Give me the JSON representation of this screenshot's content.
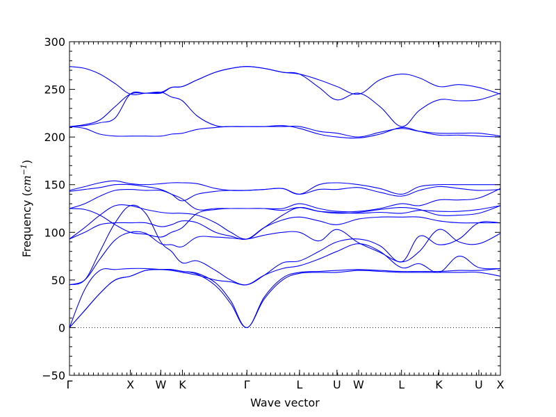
{
  "chart_data": {
    "type": "line",
    "title": "",
    "xlabel": "Wave vector",
    "ylabel": "Frequency",
    "ylabel_unit": "cm",
    "ylabel_exponent": "−1",
    "ylim": [
      -50,
      300
    ],
    "yticks": [
      -50,
      0,
      50,
      100,
      150,
      200,
      250,
      300
    ],
    "xlim": [
      0,
      14.16
    ],
    "grid": false,
    "legend": "none",
    "line_color": "#0000ff",
    "zero_line": {
      "y": 0,
      "style": "dotted",
      "color": "#000000"
    },
    "k_points": [
      {
        "label": "Γ",
        "x": 0
      },
      {
        "label": "X",
        "x": 2.0
      },
      {
        "label": "W",
        "x": 3.0
      },
      {
        "label": "K",
        "x": 3.71
      },
      {
        "label": "Γ",
        "x": 5.83
      },
      {
        "label": "L",
        "x": 7.56
      },
      {
        "label": "U",
        "x": 8.79
      },
      {
        "label": "W",
        "x": 9.5
      },
      {
        "label": "L",
        "x": 10.91
      },
      {
        "label": "K",
        "x": 12.14
      },
      {
        "label": "U",
        "x": 13.45
      },
      {
        "label": "X",
        "x": 14.16
      }
    ],
    "series": [
      {
        "x": [
          0,
          0.5,
          1,
          1.5,
          2,
          2.5,
          3,
          3.35,
          3.71,
          4.2,
          4.8,
          5.3,
          5.83,
          6.4,
          7,
          7.56,
          8.2,
          8.79,
          9.5,
          10.2,
          10.91,
          11.5,
          12.14,
          12.8,
          13.45,
          14.16
        ],
        "y": [
          0,
          18,
          36,
          50,
          54,
          60,
          61,
          61,
          59,
          56,
          44,
          25,
          0,
          30,
          50,
          57,
          58,
          58,
          60,
          59,
          58,
          58,
          58,
          58,
          58,
          54
        ]
      },
      {
        "x": [
          0,
          0.5,
          1,
          1.5,
          2,
          2.5,
          3,
          3.35,
          3.71,
          4.2,
          4.8,
          5.3,
          5.83,
          6.4,
          7,
          7.56,
          8.2,
          8.79,
          9.5,
          10.2,
          10.91,
          11.5,
          12.14,
          12.8,
          13.45,
          14.16
        ],
        "y": [
          0,
          18,
          36,
          50,
          54,
          60,
          61,
          61,
          59,
          57,
          47,
          28,
          0,
          32,
          52,
          58,
          59,
          60,
          61,
          60,
          59,
          59,
          59,
          60,
          60,
          62
        ]
      },
      {
        "x": [
          0,
          0.5,
          1,
          1.5,
          2,
          2.5,
          3,
          3.35,
          3.71,
          4.2,
          4.8,
          5.3,
          5.83,
          6.4,
          7,
          7.56,
          8.2,
          8.79,
          9.5,
          10.2,
          10.91,
          11.5,
          12.14,
          12.8,
          13.45,
          14.16
        ],
        "y": [
          0,
          40,
          60,
          61,
          62,
          62,
          61,
          60,
          58,
          55,
          50,
          48,
          45,
          55,
          62,
          65,
          72,
          80,
          88,
          80,
          63,
          67,
          58,
          75,
          63,
          62
        ]
      },
      {
        "x": [
          0,
          0.5,
          1,
          1.5,
          2,
          2.5,
          3,
          3.35,
          3.71,
          4.2,
          4.8,
          5.3,
          5.83,
          6.4,
          7,
          7.56,
          8.2,
          8.79,
          9.5,
          10.2,
          10.91,
          11.5,
          12.14,
          12.8,
          13.45,
          14.16
        ],
        "y": [
          45,
          50,
          72,
          92,
          100,
          99,
          88,
          87,
          85,
          95,
          95,
          94,
          93,
          97,
          100,
          100,
          91,
          103,
          89,
          79,
          69,
          80,
          103,
          90,
          88,
          99
        ]
      },
      {
        "x": [
          0,
          0.5,
          1,
          1.5,
          2,
          2.5,
          3,
          3.35,
          3.71,
          4.2,
          4.8,
          5.3,
          5.83,
          6.4,
          7,
          7.56,
          8.2,
          8.79,
          9.5,
          10.2,
          10.91,
          11.5,
          12.14,
          12.8,
          13.45,
          14.16
        ],
        "y": [
          45,
          50,
          80,
          110,
          128,
          120,
          90,
          80,
          68,
          70,
          60,
          50,
          45,
          55,
          68,
          70,
          80,
          90,
          93,
          86,
          69,
          96,
          87,
          93,
          110,
          110
        ]
      },
      {
        "x": [
          0,
          0.5,
          1,
          1.5,
          2,
          2.5,
          3,
          3.35,
          3.71,
          4.2,
          4.8,
          5.3,
          5.83,
          6.4,
          7,
          7.56,
          8.2,
          8.79,
          9.5,
          10.2,
          10.91,
          11.5,
          12.14,
          12.8,
          13.45,
          14.16
        ],
        "y": [
          93,
          100,
          108,
          110,
          110,
          110,
          106,
          108,
          112,
          110,
          100,
          96,
          93,
          105,
          113,
          116,
          112,
          108,
          114,
          116,
          116,
          116,
          112,
          110,
          110,
          110
        ]
      },
      {
        "x": [
          0,
          0.5,
          1,
          1.5,
          2,
          2.5,
          3,
          3.35,
          3.71,
          4.2,
          4.8,
          5.3,
          5.83,
          6.4,
          7,
          7.56,
          8.2,
          8.79,
          9.5,
          10.2,
          10.91,
          11.5,
          12.14,
          12.8,
          13.45,
          14.16
        ],
        "y": [
          93,
          105,
          118,
          128,
          128,
          124,
          121,
          120,
          120,
          118,
          110,
          100,
          93,
          105,
          118,
          126,
          122,
          120,
          121,
          124,
          126,
          124,
          118,
          118,
          120,
          128
        ]
      },
      {
        "x": [
          0,
          0.5,
          1,
          1.5,
          2,
          2.5,
          3,
          3.35,
          3.71,
          4.2,
          4.8,
          5.3,
          5.83,
          6.4,
          7,
          7.56,
          8.2,
          8.79,
          9.5,
          10.2,
          10.91,
          11.5,
          12.14,
          12.8,
          13.45,
          14.16
        ],
        "y": [
          125,
          124,
          118,
          108,
          100,
          98,
          95,
          100,
          105,
          120,
          124,
          125,
          125,
          125,
          123,
          126,
          122,
          121,
          120,
          121,
          120,
          123,
          122,
          122,
          124,
          128
        ]
      },
      {
        "x": [
          0,
          0.5,
          1,
          1.5,
          2,
          2.5,
          3,
          3.35,
          3.71,
          4.2,
          4.8,
          5.3,
          5.83,
          6.4,
          7,
          7.56,
          8.2,
          8.79,
          9.5,
          10.2,
          10.91,
          11.5,
          12.14,
          12.8,
          13.45,
          14.16
        ],
        "y": [
          125,
          130,
          138,
          144,
          145,
          144,
          144,
          140,
          135,
          124,
          125,
          125,
          125,
          125,
          125,
          130,
          125,
          122,
          122,
          125,
          130,
          128,
          134,
          134,
          136,
          146
        ]
      },
      {
        "x": [
          0,
          0.5,
          1,
          1.5,
          2,
          2.5,
          3,
          3.35,
          3.71,
          4.2,
          4.8,
          5.3,
          5.83,
          6.4,
          7,
          7.56,
          8.2,
          8.79,
          9.5,
          10.2,
          10.91,
          11.5,
          12.14,
          12.8,
          13.45,
          14.16
        ],
        "y": [
          143,
          145,
          147,
          150,
          150,
          148,
          145,
          140,
          133,
          140,
          143,
          144,
          144,
          145,
          146,
          140,
          145,
          145,
          147,
          142,
          138,
          144,
          148,
          146,
          144,
          145
        ]
      },
      {
        "x": [
          0,
          0.5,
          1,
          1.5,
          2,
          2.5,
          3,
          3.35,
          3.71,
          4.2,
          4.8,
          5.3,
          5.83,
          6.4,
          7,
          7.56,
          8.2,
          8.79,
          9.5,
          10.2,
          10.91,
          11.5,
          12.14,
          12.8,
          13.45,
          14.16
        ],
        "y": [
          144,
          148,
          152,
          154,
          151,
          150,
          151,
          152,
          152,
          151,
          146,
          144,
          144,
          145,
          146,
          140,
          150,
          152,
          150,
          146,
          140,
          148,
          150,
          150,
          150,
          150
        ]
      },
      {
        "x": [
          0,
          0.5,
          1,
          1.5,
          2,
          2.5,
          3,
          3.35,
          3.71,
          4.2,
          4.8,
          5.3,
          5.83,
          6.4,
          7,
          7.56,
          8.2,
          8.79,
          9.5,
          10.2,
          10.91,
          11.5,
          12.14,
          12.8,
          13.45,
          14.16
        ],
        "y": [
          211,
          209,
          203,
          201,
          201,
          201,
          201,
          203,
          204,
          208,
          210,
          211,
          211,
          211,
          211,
          211,
          206,
          204,
          200,
          205,
          209,
          206,
          204,
          204,
          204,
          201
        ]
      },
      {
        "x": [
          0,
          0.5,
          1,
          1.5,
          2,
          2.5,
          3,
          3.35,
          3.71,
          4.2,
          4.8,
          5.3,
          5.83,
          6.4,
          7,
          7.56,
          8.2,
          8.79,
          9.5,
          10.2,
          10.91,
          11.5,
          12.14,
          12.8,
          13.45,
          14.16
        ],
        "y": [
          211,
          212,
          215,
          220,
          245,
          246,
          247,
          242,
          238,
          222,
          212,
          211,
          211,
          211,
          212,
          209,
          203,
          200,
          199,
          203,
          210,
          206,
          202,
          202,
          201,
          200
        ]
      },
      {
        "x": [
          0,
          0.5,
          1,
          1.5,
          2,
          2.5,
          3,
          3.35,
          3.71,
          4.2,
          4.8,
          5.3,
          5.83,
          6.4,
          7,
          7.56,
          8.2,
          8.79,
          9.5,
          10.2,
          10.91,
          11.5,
          12.14,
          12.8,
          13.45,
          14.16
        ],
        "y": [
          211,
          213,
          218,
          232,
          245,
          246,
          246,
          252,
          253,
          260,
          268,
          272,
          274,
          272,
          268,
          266,
          252,
          239,
          246,
          232,
          211,
          228,
          239,
          238,
          239,
          246
        ]
      },
      {
        "x": [
          0,
          0.5,
          1,
          1.5,
          2,
          2.5,
          3,
          3.35,
          3.71,
          4.2,
          4.8,
          5.3,
          5.83,
          6.4,
          7,
          7.56,
          8.2,
          8.79,
          9.5,
          10.2,
          10.91,
          11.5,
          12.14,
          12.8,
          13.45,
          14.16
        ],
        "y": [
          274,
          272,
          266,
          256,
          245,
          246,
          247,
          252,
          253,
          260,
          268,
          272,
          274,
          272,
          268,
          266,
          260,
          253,
          245,
          260,
          266,
          262,
          253,
          255,
          252,
          245
        ]
      }
    ]
  }
}
